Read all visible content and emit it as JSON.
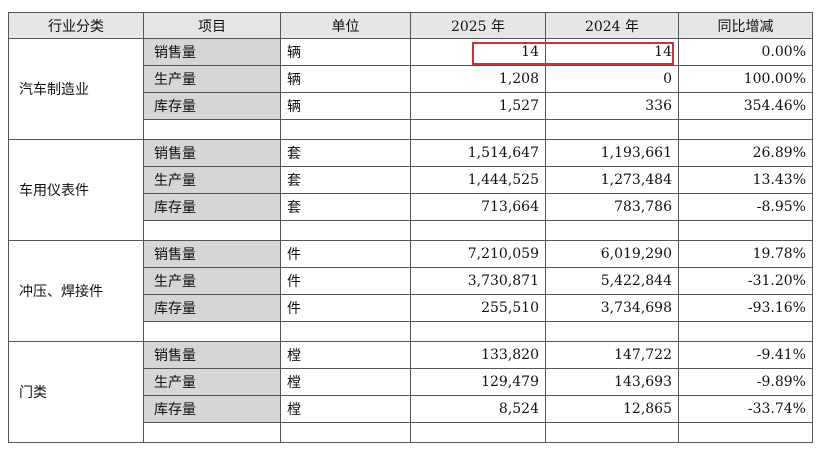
{
  "table": {
    "header": [
      "行业分类",
      "项目",
      "单位",
      "2025 年",
      "2024 年",
      "同比增减"
    ],
    "groups": [
      {
        "industry": "汽车制造业",
        "rows": [
          [
            "销售量",
            "辆",
            "14",
            "14",
            "0.00%"
          ],
          [
            "生产量",
            "辆",
            "1,208",
            "0",
            "100.00%"
          ],
          [
            "库存量",
            "辆",
            "1,527",
            "336",
            "354.46%"
          ]
        ]
      },
      {
        "industry": "车用仪表件",
        "rows": [
          [
            "销售量",
            "套",
            "1,514,647",
            "1,193,661",
            "26.89%"
          ],
          [
            "生产量",
            "套",
            "1,444,525",
            "1,273,484",
            "13.43%"
          ],
          [
            "库存量",
            "套",
            "713,664",
            "783,786",
            "-8.95%"
          ]
        ]
      },
      {
        "industry": "冲压、焊接件",
        "rows": [
          [
            "销售量",
            "件",
            "7,210,059",
            "6,019,290",
            "19.78%"
          ],
          [
            "生产量",
            "件",
            "3,730,871",
            "5,422,844",
            "-31.20%"
          ],
          [
            "库存量",
            "件",
            "255,510",
            "3,734,698",
            "-93.16%"
          ]
        ]
      },
      {
        "industry": "门类",
        "rows": [
          [
            "销售量",
            "樘",
            "133,820",
            "147,722",
            "-9.41%"
          ],
          [
            "生产量",
            "樘",
            "129,479",
            "143,693",
            "-9.89%"
          ],
          [
            "库存量",
            "樘",
            "8,524",
            "12,865",
            "-33.74%"
          ]
        ]
      }
    ]
  }
}
